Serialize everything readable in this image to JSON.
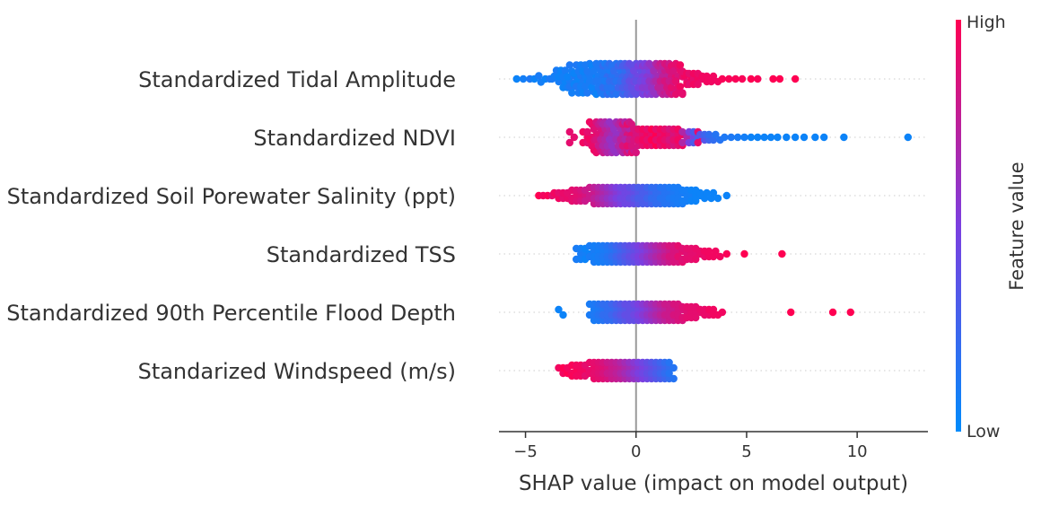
{
  "chart_data": {
    "type": "scatter",
    "subtype": "shap-beeswarm",
    "xlabel": "SHAP value (impact on model output)",
    "xlim": [
      -6.2,
      13.2
    ],
    "xticks": [
      -5,
      0,
      5,
      10
    ],
    "xtick_labels": [
      "−5",
      "0",
      "5",
      "10"
    ],
    "zero_line": 0,
    "colorbar": {
      "title": "Feature value",
      "high_label": "High",
      "low_label": "Low",
      "high_color": "#ff0052",
      "mid_color": "#7b3fe0",
      "low_color": "#008bfb"
    },
    "features": [
      {
        "name": "Standardized Tidal Amplitude",
        "points": [
          [
            -5.4,
            0.05
          ],
          [
            -5.1,
            0.08
          ],
          [
            -4.8,
            0.12
          ],
          [
            -4.6,
            0.05
          ],
          [
            -4.4,
            0.1
          ],
          [
            -4.3,
            0.08
          ],
          [
            -4.1,
            0.05
          ],
          [
            -3.9,
            0.12
          ],
          [
            -3.8,
            0.1
          ],
          [
            -3.6,
            0.08
          ],
          [
            -3.5,
            0.1
          ],
          [
            -3.4,
            0.05
          ],
          [
            -3.3,
            0.05
          ],
          [
            -3.2,
            0.08
          ],
          [
            -3.1,
            0.1
          ],
          [
            -3.0,
            0.05
          ],
          [
            -2.9,
            0.12
          ],
          [
            -2.8,
            0.08
          ],
          [
            -2.7,
            0.05
          ],
          [
            -2.6,
            0.12
          ],
          [
            -2.5,
            0.1
          ],
          [
            -2.4,
            0.08
          ],
          [
            -2.3,
            0.05
          ],
          [
            -2.2,
            0.1
          ],
          [
            -2.1,
            0.12
          ],
          [
            -2.0,
            0.1
          ],
          [
            -1.9,
            0.05
          ],
          [
            -1.8,
            0.1
          ],
          [
            -1.7,
            0.12
          ],
          [
            -1.6,
            0.12
          ],
          [
            -1.5,
            0.12
          ],
          [
            -1.4,
            0.2
          ],
          [
            -1.3,
            0.1
          ],
          [
            -1.2,
            0.15
          ],
          [
            -1.1,
            0.2
          ],
          [
            -1.0,
            0.15
          ],
          [
            -0.9,
            0.2
          ],
          [
            -0.8,
            0.15
          ],
          [
            -0.7,
            0.25
          ],
          [
            -0.6,
            0.2
          ],
          [
            -0.5,
            0.3
          ],
          [
            -0.4,
            0.3
          ],
          [
            -0.3,
            0.35
          ],
          [
            -0.2,
            0.4
          ],
          [
            -0.1,
            0.4
          ],
          [
            0.0,
            0.45
          ],
          [
            0.1,
            0.4
          ],
          [
            0.2,
            0.5
          ],
          [
            0.3,
            0.45
          ],
          [
            0.4,
            0.55
          ],
          [
            0.5,
            0.5
          ],
          [
            0.6,
            0.55
          ],
          [
            0.7,
            0.6
          ],
          [
            0.8,
            0.6
          ],
          [
            0.9,
            0.65
          ],
          [
            1.0,
            0.7
          ],
          [
            1.1,
            0.75
          ],
          [
            1.2,
            0.8
          ],
          [
            1.3,
            0.75
          ],
          [
            1.4,
            0.85
          ],
          [
            1.5,
            0.85
          ],
          [
            1.6,
            0.8
          ],
          [
            1.7,
            0.9
          ],
          [
            1.8,
            0.85
          ],
          [
            1.9,
            0.9
          ],
          [
            2.0,
            0.9
          ],
          [
            2.1,
            0.95
          ],
          [
            2.2,
            0.9
          ],
          [
            2.4,
            0.95
          ],
          [
            2.5,
            0.9
          ],
          [
            2.7,
            0.95
          ],
          [
            2.9,
            0.92
          ],
          [
            3.1,
            0.95
          ],
          [
            3.3,
            0.95
          ],
          [
            3.6,
            0.95
          ],
          [
            3.9,
            0.98
          ],
          [
            4.2,
            0.98
          ],
          [
            4.5,
            0.98
          ],
          [
            4.8,
            0.98
          ],
          [
            5.2,
            1.0
          ],
          [
            5.5,
            0.98
          ],
          [
            6.2,
            1.0
          ],
          [
            6.5,
            1.0
          ],
          [
            7.2,
            1.0
          ]
        ]
      },
      {
        "name": "Standardized NDVI",
        "points": [
          [
            -2.9,
            0.9
          ],
          [
            -2.3,
            0.95
          ],
          [
            -2.1,
            0.9
          ],
          [
            -2.0,
            0.95
          ],
          [
            -1.9,
            0.92
          ],
          [
            -1.8,
            0.88
          ],
          [
            -1.7,
            0.85
          ],
          [
            -1.6,
            0.8
          ],
          [
            -1.5,
            0.75
          ],
          [
            -1.4,
            0.7
          ],
          [
            -1.3,
            0.7
          ],
          [
            -1.2,
            0.65
          ],
          [
            -1.1,
            0.6
          ],
          [
            -1.0,
            0.6
          ],
          [
            -0.9,
            0.6
          ],
          [
            -0.8,
            0.65
          ],
          [
            -0.7,
            0.7
          ],
          [
            -0.6,
            0.75
          ],
          [
            -0.5,
            0.85
          ],
          [
            -0.4,
            0.7
          ],
          [
            -0.3,
            0.9
          ],
          [
            -0.2,
            0.8
          ],
          [
            -0.1,
            0.85
          ],
          [
            0.0,
            0.85
          ],
          [
            0.2,
            0.9
          ],
          [
            0.4,
            0.95
          ],
          [
            0.6,
            0.9
          ],
          [
            0.8,
            1.0
          ],
          [
            1.0,
            0.9
          ],
          [
            1.2,
            0.95
          ],
          [
            1.4,
            0.9
          ],
          [
            1.6,
            0.85
          ],
          [
            1.8,
            0.9
          ],
          [
            2.0,
            0.95
          ],
          [
            2.2,
            0.7
          ],
          [
            2.5,
            0.5
          ],
          [
            2.7,
            0.3
          ],
          [
            2.9,
            0.9
          ],
          [
            3.0,
            0.35
          ],
          [
            3.2,
            0.25
          ],
          [
            3.4,
            0.2
          ],
          [
            3.7,
            0.15
          ],
          [
            4.0,
            0.12
          ],
          [
            4.3,
            0.12
          ],
          [
            4.6,
            0.1
          ],
          [
            4.9,
            0.08
          ],
          [
            5.2,
            0.05
          ],
          [
            5.5,
            0.05
          ],
          [
            5.8,
            0.05
          ],
          [
            6.1,
            0.05
          ],
          [
            6.4,
            0.05
          ],
          [
            6.8,
            0.05
          ],
          [
            7.2,
            0.05
          ],
          [
            7.6,
            0.05
          ],
          [
            8.1,
            0.05
          ],
          [
            8.5,
            0.05
          ],
          [
            9.4,
            0.05
          ],
          [
            12.3,
            0.05
          ]
        ]
      },
      {
        "name": "Standardized Soil Porewater Salinity (ppt)",
        "points": [
          [
            -4.4,
            1.0
          ],
          [
            -4.2,
            0.95
          ],
          [
            -4.0,
            0.98
          ],
          [
            -3.8,
            0.9
          ],
          [
            -3.6,
            0.95
          ],
          [
            -3.4,
            0.9
          ],
          [
            -3.2,
            0.92
          ],
          [
            -3.0,
            0.9
          ],
          [
            -2.8,
            0.9
          ],
          [
            -2.6,
            0.88
          ],
          [
            -2.4,
            0.85
          ],
          [
            -2.2,
            0.8
          ],
          [
            -2.0,
            0.8
          ],
          [
            -1.8,
            0.75
          ],
          [
            -1.6,
            0.7
          ],
          [
            -1.4,
            0.65
          ],
          [
            -1.2,
            0.6
          ],
          [
            -1.0,
            0.55
          ],
          [
            -0.8,
            0.5
          ],
          [
            -0.6,
            0.45
          ],
          [
            -0.4,
            0.45
          ],
          [
            -0.2,
            0.4
          ],
          [
            0.0,
            0.35
          ],
          [
            0.2,
            0.3
          ],
          [
            0.4,
            0.3
          ],
          [
            0.6,
            0.25
          ],
          [
            0.8,
            0.2
          ],
          [
            1.0,
            0.2
          ],
          [
            1.2,
            0.15
          ],
          [
            1.4,
            0.15
          ],
          [
            1.6,
            0.12
          ],
          [
            1.8,
            0.1
          ],
          [
            2.0,
            0.1
          ],
          [
            2.2,
            0.08
          ],
          [
            2.4,
            0.08
          ],
          [
            2.6,
            0.05
          ],
          [
            2.8,
            0.05
          ],
          [
            3.0,
            0.05
          ],
          [
            3.3,
            0.05
          ],
          [
            3.6,
            0.05
          ],
          [
            4.1,
            0.05
          ]
        ]
      },
      {
        "name": "Standardized TSS",
        "points": [
          [
            -2.6,
            0.1
          ],
          [
            -2.4,
            0.08
          ],
          [
            -2.2,
            0.05
          ],
          [
            -2.0,
            0.1
          ],
          [
            -1.8,
            0.08
          ],
          [
            -1.6,
            0.1
          ],
          [
            -1.4,
            0.12
          ],
          [
            -1.2,
            0.15
          ],
          [
            -1.0,
            0.2
          ],
          [
            -0.8,
            0.25
          ],
          [
            -0.6,
            0.3
          ],
          [
            -0.4,
            0.35
          ],
          [
            -0.2,
            0.4
          ],
          [
            0.0,
            0.45
          ],
          [
            0.2,
            0.5
          ],
          [
            0.4,
            0.55
          ],
          [
            0.6,
            0.6
          ],
          [
            0.8,
            0.65
          ],
          [
            1.0,
            0.7
          ],
          [
            1.2,
            0.75
          ],
          [
            1.4,
            0.8
          ],
          [
            1.6,
            0.85
          ],
          [
            1.8,
            0.85
          ],
          [
            2.0,
            0.9
          ],
          [
            2.2,
            0.88
          ],
          [
            2.4,
            0.9
          ],
          [
            2.6,
            0.9
          ],
          [
            2.8,
            0.92
          ],
          [
            3.0,
            0.92
          ],
          [
            3.2,
            0.95
          ],
          [
            3.4,
            0.95
          ],
          [
            3.7,
            0.95
          ],
          [
            4.1,
            0.98
          ],
          [
            4.9,
            1.0
          ],
          [
            6.6,
            1.0
          ]
        ]
      },
      {
        "name": "Standardized 90th Percentile Flood Depth",
        "points": [
          [
            -3.4,
            0.05
          ],
          [
            -2.0,
            0.1
          ],
          [
            -1.8,
            0.12
          ],
          [
            -1.6,
            0.15
          ],
          [
            -1.4,
            0.2
          ],
          [
            -1.2,
            0.2
          ],
          [
            -1.0,
            0.25
          ],
          [
            -0.8,
            0.3
          ],
          [
            -0.6,
            0.35
          ],
          [
            -0.4,
            0.4
          ],
          [
            -0.2,
            0.4
          ],
          [
            0.0,
            0.45
          ],
          [
            0.2,
            0.5
          ],
          [
            0.4,
            0.55
          ],
          [
            0.6,
            0.6
          ],
          [
            0.8,
            0.65
          ],
          [
            1.0,
            0.7
          ],
          [
            1.2,
            0.75
          ],
          [
            1.4,
            0.8
          ],
          [
            1.6,
            0.8
          ],
          [
            1.8,
            0.85
          ],
          [
            2.0,
            0.85
          ],
          [
            2.2,
            0.88
          ],
          [
            2.4,
            0.9
          ],
          [
            2.6,
            0.9
          ],
          [
            2.8,
            0.9
          ],
          [
            3.0,
            0.92
          ],
          [
            3.2,
            0.92
          ],
          [
            3.4,
            0.95
          ],
          [
            3.6,
            0.95
          ],
          [
            3.9,
            0.95
          ],
          [
            7.0,
            1.0
          ],
          [
            8.9,
            1.0
          ],
          [
            9.7,
            1.0
          ]
        ]
      },
      {
        "name": "Standarized Windspeed (m/s)",
        "points": [
          [
            -3.4,
            0.95
          ],
          [
            -3.2,
            1.0
          ],
          [
            -3.0,
            0.95
          ],
          [
            -2.8,
            0.98
          ],
          [
            -2.6,
            0.95
          ],
          [
            -2.4,
            0.95
          ],
          [
            -2.2,
            0.9
          ],
          [
            -2.0,
            0.92
          ],
          [
            -1.8,
            0.9
          ],
          [
            -1.6,
            0.88
          ],
          [
            -1.4,
            0.85
          ],
          [
            -1.2,
            0.8
          ],
          [
            -1.0,
            0.78
          ],
          [
            -0.8,
            0.75
          ],
          [
            -0.6,
            0.7
          ],
          [
            -0.4,
            0.65
          ],
          [
            -0.2,
            0.6
          ],
          [
            0.0,
            0.55
          ],
          [
            0.2,
            0.5
          ],
          [
            0.4,
            0.45
          ],
          [
            0.6,
            0.4
          ],
          [
            0.8,
            0.35
          ],
          [
            1.0,
            0.3
          ],
          [
            1.2,
            0.25
          ],
          [
            1.4,
            0.2
          ],
          [
            1.6,
            0.15
          ]
        ]
      }
    ]
  }
}
